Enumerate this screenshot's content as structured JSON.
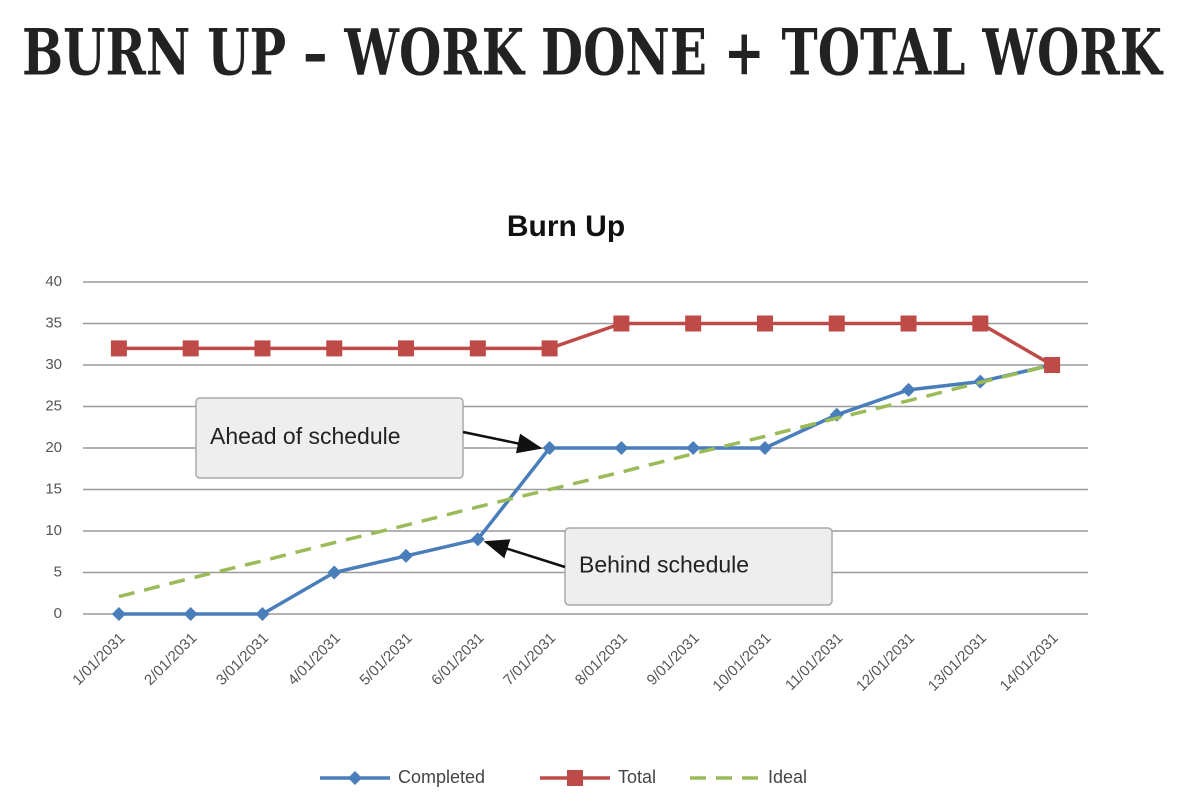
{
  "slide_title": "BURN UP – WORK DONE + TOTAL WORK",
  "chart_data": {
    "type": "line",
    "title": "Burn Up",
    "categories": [
      "1/01/2031",
      "2/01/2031",
      "3/01/2031",
      "4/01/2031",
      "5/01/2031",
      "6/01/2031",
      "7/01/2031",
      "8/01/2031",
      "9/01/2031",
      "10/01/2031",
      "11/01/2031",
      "12/01/2031",
      "13/01/2031",
      "14/01/2031"
    ],
    "series": [
      {
        "name": "Completed",
        "color": "#4a7ebb",
        "marker": "diamond",
        "values": [
          0,
          0,
          0,
          5,
          7,
          9,
          20,
          20,
          20,
          20,
          24,
          27,
          28,
          30
        ]
      },
      {
        "name": "Total",
        "color": "#be4b48",
        "marker": "square",
        "values": [
          32,
          32,
          32,
          32,
          32,
          32,
          32,
          35,
          35,
          35,
          35,
          35,
          35,
          30
        ]
      },
      {
        "name": "Ideal",
        "color": "#9bbb59",
        "dashed": true,
        "values": [
          2.1,
          4.3,
          6.4,
          8.6,
          10.7,
          12.9,
          15,
          17.1,
          19.3,
          21.4,
          23.6,
          25.7,
          27.9,
          30
        ]
      }
    ],
    "ylim": [
      0,
      40
    ],
    "yticks": [
      0,
      5,
      10,
      15,
      20,
      25,
      30,
      35,
      40
    ],
    "grid": true,
    "legend": "bottom",
    "annotations": [
      "Ahead of schedule",
      "Behind schedule"
    ]
  }
}
